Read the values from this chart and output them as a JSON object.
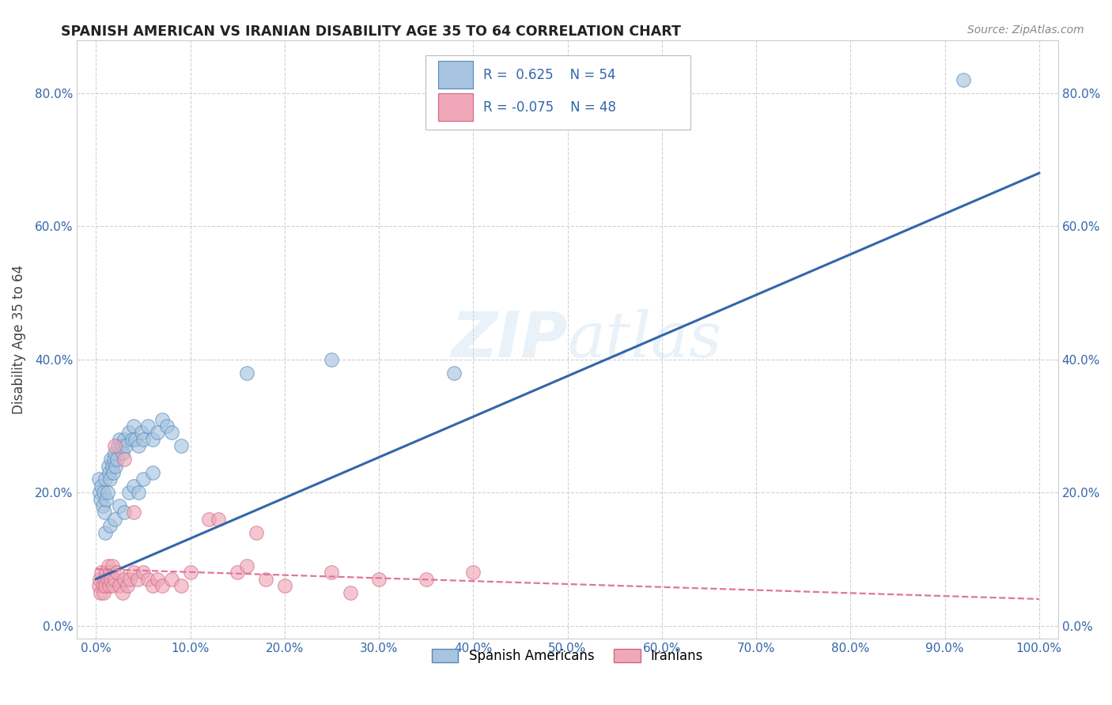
{
  "title": "SPANISH AMERICAN VS IRANIAN DISABILITY AGE 35 TO 64 CORRELATION CHART",
  "source": "Source: ZipAtlas.com",
  "ylabel": "Disability Age 35 to 64",
  "xlim": [
    -0.02,
    1.02
  ],
  "ylim": [
    -0.02,
    0.88
  ],
  "xticks": [
    0.0,
    0.1,
    0.2,
    0.3,
    0.4,
    0.5,
    0.6,
    0.7,
    0.8,
    0.9,
    1.0
  ],
  "xtick_labels": [
    "0.0%",
    "10.0%",
    "20.0%",
    "30.0%",
    "40.0%",
    "50.0%",
    "60.0%",
    "70.0%",
    "80.0%",
    "90.0%",
    "100.0%"
  ],
  "yticks": [
    0.0,
    0.2,
    0.4,
    0.6,
    0.8
  ],
  "ytick_labels": [
    "0.0%",
    "20.0%",
    "40.0%",
    "60.0%",
    "80.0%"
  ],
  "background_color": "#ffffff",
  "blue_color": "#a8c4e0",
  "blue_edge_color": "#5588bb",
  "pink_color": "#f0a8b8",
  "pink_edge_color": "#cc6688",
  "blue_line_color": "#3366aa",
  "pink_line_color": "#dd7799",
  "legend_R1": "R =  0.625",
  "legend_N1": "N = 54",
  "legend_R2": "R = -0.075",
  "legend_N2": "N = 48",
  "spanish_x": [
    0.003,
    0.004,
    0.005,
    0.006,
    0.007,
    0.008,
    0.009,
    0.01,
    0.011,
    0.012,
    0.013,
    0.014,
    0.015,
    0.016,
    0.017,
    0.018,
    0.019,
    0.02,
    0.021,
    0.022,
    0.023,
    0.025,
    0.027,
    0.028,
    0.03,
    0.032,
    0.035,
    0.038,
    0.04,
    0.042,
    0.045,
    0.048,
    0.05,
    0.055,
    0.06,
    0.065,
    0.07,
    0.075,
    0.08,
    0.09,
    0.01,
    0.015,
    0.02,
    0.025,
    0.03,
    0.035,
    0.04,
    0.045,
    0.05,
    0.06,
    0.16,
    0.25,
    0.92,
    0.38
  ],
  "spanish_y": [
    0.22,
    0.2,
    0.19,
    0.21,
    0.18,
    0.2,
    0.17,
    0.22,
    0.19,
    0.2,
    0.24,
    0.23,
    0.22,
    0.25,
    0.24,
    0.23,
    0.25,
    0.26,
    0.24,
    0.25,
    0.27,
    0.28,
    0.27,
    0.26,
    0.28,
    0.27,
    0.29,
    0.28,
    0.3,
    0.28,
    0.27,
    0.29,
    0.28,
    0.3,
    0.28,
    0.29,
    0.31,
    0.3,
    0.29,
    0.27,
    0.14,
    0.15,
    0.16,
    0.18,
    0.17,
    0.2,
    0.21,
    0.2,
    0.22,
    0.23,
    0.38,
    0.4,
    0.82,
    0.38
  ],
  "iranian_x": [
    0.003,
    0.004,
    0.005,
    0.006,
    0.007,
    0.008,
    0.009,
    0.01,
    0.011,
    0.012,
    0.013,
    0.014,
    0.015,
    0.016,
    0.017,
    0.018,
    0.02,
    0.022,
    0.025,
    0.028,
    0.03,
    0.033,
    0.036,
    0.04,
    0.044,
    0.05,
    0.055,
    0.06,
    0.065,
    0.07,
    0.08,
    0.09,
    0.1,
    0.15,
    0.16,
    0.18,
    0.2,
    0.25,
    0.27,
    0.3,
    0.35,
    0.4,
    0.02,
    0.03,
    0.04,
    0.12,
    0.13,
    0.17
  ],
  "iranian_y": [
    0.06,
    0.07,
    0.05,
    0.08,
    0.06,
    0.05,
    0.07,
    0.06,
    0.08,
    0.07,
    0.09,
    0.06,
    0.08,
    0.07,
    0.09,
    0.06,
    0.07,
    0.08,
    0.06,
    0.05,
    0.07,
    0.06,
    0.07,
    0.08,
    0.07,
    0.08,
    0.07,
    0.06,
    0.07,
    0.06,
    0.07,
    0.06,
    0.08,
    0.08,
    0.09,
    0.07,
    0.06,
    0.08,
    0.05,
    0.07,
    0.07,
    0.08,
    0.27,
    0.25,
    0.17,
    0.16,
    0.16,
    0.14
  ],
  "blue_trendline_x": [
    0.0,
    1.0
  ],
  "blue_trendline_y": [
    0.07,
    0.68
  ],
  "pink_trendline_x": [
    0.0,
    1.0
  ],
  "pink_trendline_y": [
    0.085,
    0.04
  ]
}
